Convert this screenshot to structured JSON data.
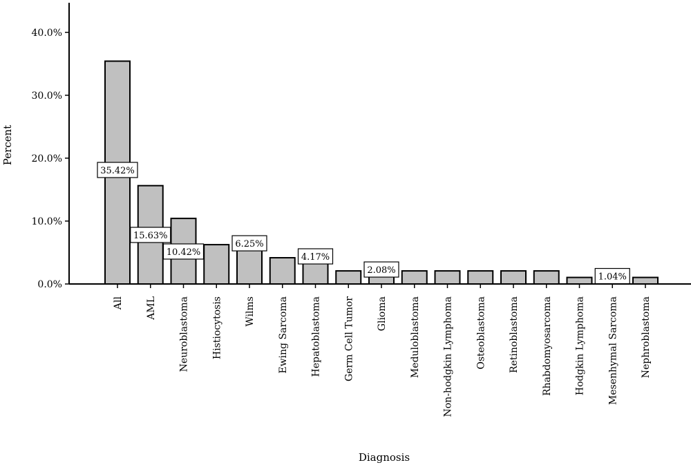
{
  "chart_data": {
    "type": "bar",
    "xlabel": "Diagnosis",
    "ylabel": "Percent",
    "ylim": [
      0,
      44.7
    ],
    "yticks": [
      "0.0%",
      "10.0%",
      "20.0%",
      "30.0%",
      "40.0%"
    ],
    "ytick_values": [
      0,
      10,
      20,
      30,
      40
    ],
    "grid": false,
    "legend": "none",
    "categories": [
      "All",
      "AML",
      "Neuroblastoma",
      "Histiocytosis",
      "Wilms",
      "Ewing Sarcoma",
      "Hepatoblastoma",
      "Germ Cell Tumor",
      "Glioma",
      "Meduloblastoma",
      "Non-hodgkin Lymphoma",
      "Osteoblastoma",
      "Retinoblastoma",
      "Rhabdomyosarcoma",
      "Hodgkin Lymphoma",
      "Mesenhymal Sarcoma",
      "Nephroblastoma"
    ],
    "values": [
      35.42,
      15.63,
      10.42,
      6.25,
      6.25,
      4.17,
      4.17,
      2.08,
      2.08,
      2.08,
      2.08,
      2.08,
      2.08,
      2.08,
      1.04,
      1.04,
      1.04
    ],
    "data_labels": [
      {
        "index": 0,
        "text": "35.42%"
      },
      {
        "index": 1,
        "text": "15.63%"
      },
      {
        "index": 2,
        "text": "10.42%"
      },
      {
        "index": 4,
        "text": "6.25%"
      },
      {
        "index": 6,
        "text": "4.17%"
      },
      {
        "index": 8,
        "text": "2.08%"
      },
      {
        "index": 15,
        "text": "1.04%"
      }
    ],
    "bar_color": "#c0c0c0"
  }
}
